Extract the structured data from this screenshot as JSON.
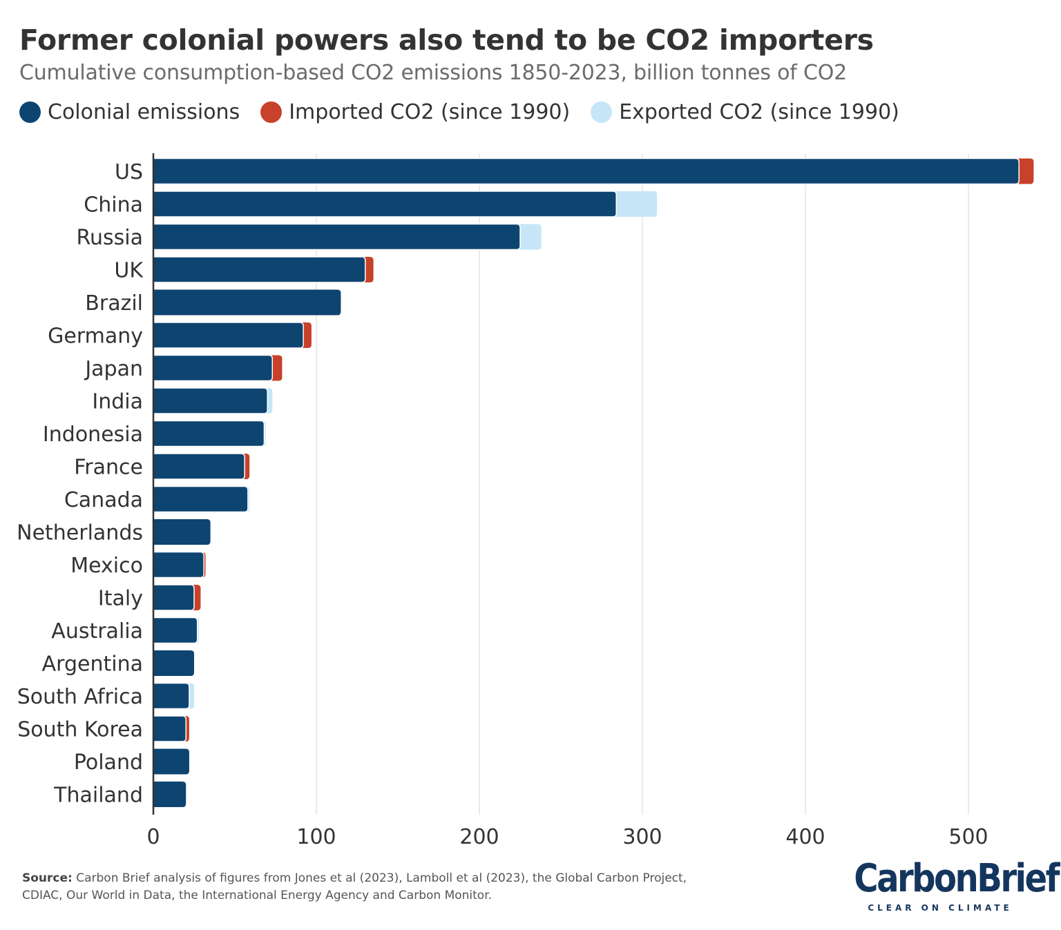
{
  "colors": {
    "colonial": "#0e4470",
    "imported": "#c8412b",
    "exported": "#c6e6f8",
    "grid": "#e3e3e3",
    "axis": "#333333"
  },
  "legend": {
    "colonial": "Colonial emissions",
    "imported": "Imported CO2 (since 1990)",
    "exported": "Exported CO2 (since 1990)"
  },
  "chart_data": {
    "type": "bar",
    "orientation": "horizontal",
    "stacked": true,
    "title": "Former colonial powers also tend to be CO2 importers",
    "subtitle": "Cumulative consumption-based CO2 emissions 1850-2023, billion tonnes of CO2",
    "xlabel": "",
    "ylabel": "",
    "xlim": [
      0,
      540
    ],
    "xticks": [
      0,
      100,
      200,
      300,
      400,
      500
    ],
    "grid": true,
    "legend_position": "top-left",
    "categories": [
      "US",
      "China",
      "Russia",
      "UK",
      "Brazil",
      "Germany",
      "Japan",
      "India",
      "Indonesia",
      "France",
      "Canada",
      "Netherlands",
      "Mexico",
      "Italy",
      "Australia",
      "Argentina",
      "South Africa",
      "South Korea",
      "Poland",
      "Thailand"
    ],
    "series": [
      {
        "name": "Colonial emissions",
        "key": "colonial",
        "values": [
          531,
          284,
          225,
          130,
          115,
          92,
          73,
          70,
          68,
          56,
          58,
          35,
          31,
          25,
          27,
          25,
          22,
          20,
          22,
          20
        ]
      },
      {
        "name": "Imported CO2 (since 1990)",
        "key": "imported",
        "values": [
          9,
          0,
          0,
          5,
          0,
          5,
          6,
          0,
          0,
          3,
          0,
          0,
          1,
          4,
          0,
          0,
          0,
          2,
          0,
          0
        ]
      },
      {
        "name": "Exported CO2 (since 1990)",
        "key": "exported",
        "values": [
          0,
          25,
          13,
          0,
          0,
          0,
          0,
          3,
          1,
          0,
          1,
          0,
          0,
          0,
          1,
          0,
          3,
          0,
          0,
          0
        ]
      }
    ]
  },
  "footer": {
    "source_label": "Source:",
    "source_text": " Carbon Brief analysis of figures from Jones et al (2023), Lamboll et al (2023), the Global Carbon Project, CDIAC, Our World in Data, the International Energy Agency and Carbon Monitor."
  },
  "logo": {
    "name": "CarbonBrief",
    "tagline": "CLEAR ON CLIMATE"
  }
}
